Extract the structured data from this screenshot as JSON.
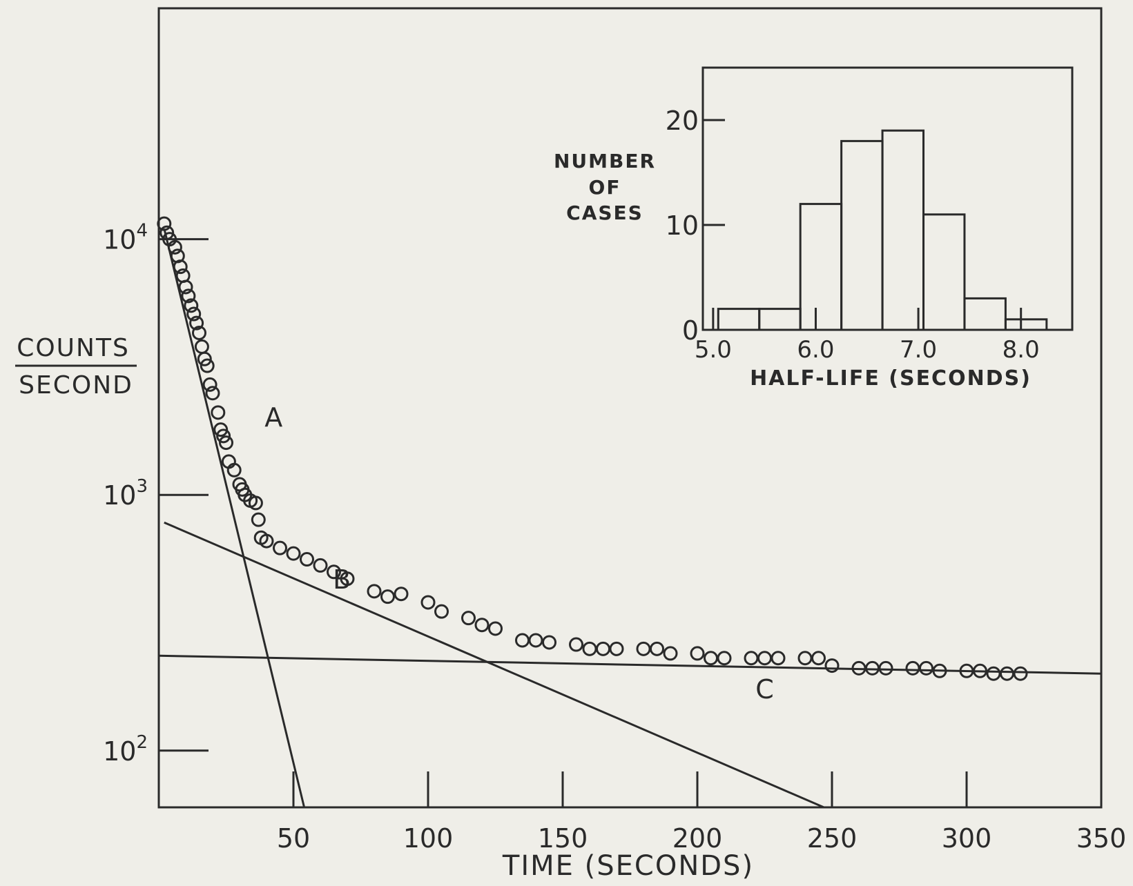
{
  "colors": {
    "ink": "#2a2a2a",
    "paper": "#efeee8"
  },
  "chart_data": [
    {
      "type": "scatter",
      "title": "",
      "xlabel": "TIME (SECONDS)",
      "ylabel_top": "COUNTS",
      "ylabel_bottom": "SECOND",
      "y_scale": "log",
      "xlim": [
        0,
        350
      ],
      "ylim": [
        60,
        80000
      ],
      "x_ticks": [
        50,
        100,
        150,
        200,
        250,
        300,
        350
      ],
      "x_tick_labels": [
        "50",
        "100",
        "150",
        "200",
        "250",
        "300",
        "350"
      ],
      "y_ticks": [
        100,
        1000,
        10000
      ],
      "y_tick_labels": [
        {
          "base": "10",
          "exp": "2"
        },
        {
          "base": "10",
          "exp": "3"
        },
        {
          "base": "10",
          "exp": "4"
        }
      ],
      "points": {
        "x": [
          2,
          3,
          4,
          6,
          7,
          8,
          9,
          10,
          11,
          12,
          13,
          14,
          15,
          16,
          17,
          18,
          19,
          20,
          22,
          23,
          24,
          25,
          26,
          28,
          30,
          31,
          32,
          34,
          36,
          37,
          38,
          40,
          45,
          50,
          55,
          60,
          65,
          70,
          80,
          85,
          90,
          100,
          105,
          115,
          120,
          125,
          135,
          140,
          145,
          155,
          160,
          165,
          170,
          180,
          185,
          190,
          200,
          205,
          210,
          220,
          225,
          230,
          240,
          245,
          250,
          260,
          265,
          270,
          280,
          285,
          290,
          300,
          305,
          310,
          315,
          320
        ],
        "y": [
          11500,
          10600,
          10000,
          9300,
          8600,
          7800,
          7200,
          6500,
          6000,
          5500,
          5100,
          4700,
          4300,
          3800,
          3400,
          3200,
          2700,
          2500,
          2100,
          1800,
          1700,
          1600,
          1350,
          1250,
          1100,
          1050,
          1000,
          950,
          930,
          800,
          680,
          660,
          620,
          590,
          560,
          530,
          500,
          470,
          420,
          400,
          410,
          380,
          350,
          330,
          310,
          300,
          270,
          270,
          265,
          260,
          250,
          250,
          250,
          250,
          250,
          240,
          240,
          230,
          230,
          230,
          230,
          230,
          230,
          230,
          215,
          210,
          210,
          210,
          210,
          210,
          205,
          205,
          205,
          200,
          200,
          200
        ]
      },
      "lines": [
        {
          "name": "A",
          "x": [
            2,
            54
          ],
          "y": [
            11000,
            60
          ]
        },
        {
          "name": "B",
          "x": [
            2,
            247
          ],
          "y": [
            780,
            60
          ]
        },
        {
          "name": "C",
          "x": [
            0,
            350
          ],
          "y": [
            235,
            200
          ]
        }
      ]
    },
    {
      "type": "bar",
      "title": "",
      "xlabel": "HALF-LIFE (SECONDS)",
      "ylabel_lines": [
        "NUMBER",
        "OF",
        "CASES"
      ],
      "xlim": [
        4.9,
        8.5
      ],
      "ylim": [
        0,
        25
      ],
      "x_ticks": [
        5.0,
        6.0,
        7.0,
        8.0
      ],
      "x_tick_labels": [
        "5.0",
        "6.0",
        "7.0",
        "8.0"
      ],
      "y_ticks": [
        0,
        10,
        20
      ],
      "y_tick_labels": [
        "0",
        "10",
        "20"
      ],
      "bins": [
        {
          "x0": 5.05,
          "x1": 5.45,
          "count": 2
        },
        {
          "x0": 5.45,
          "x1": 5.85,
          "count": 2
        },
        {
          "x0": 5.85,
          "x1": 6.25,
          "count": 12
        },
        {
          "x0": 6.25,
          "x1": 6.65,
          "count": 18
        },
        {
          "x0": 6.65,
          "x1": 7.05,
          "count": 19
        },
        {
          "x0": 7.05,
          "x1": 7.45,
          "count": 11
        },
        {
          "x0": 7.45,
          "x1": 7.85,
          "count": 3
        },
        {
          "x0": 7.85,
          "x1": 8.25,
          "count": 1
        }
      ]
    }
  ]
}
